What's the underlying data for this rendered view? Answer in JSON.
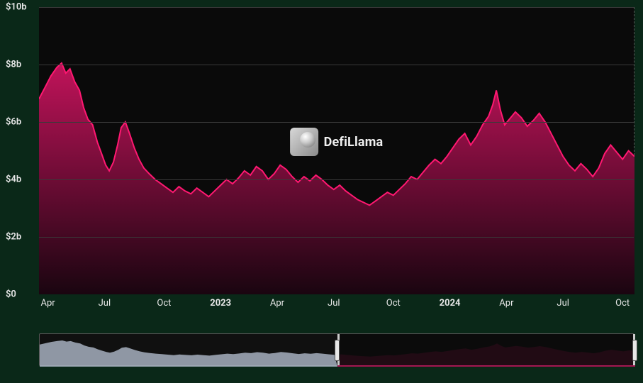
{
  "chart": {
    "type": "area",
    "background_color": "#0a0a0a",
    "page_background": "#0a2818",
    "grid_color": "#3a3a3a",
    "line_color": "#ff1871",
    "fill_top": "#c1135a",
    "fill_bottom": "#1a0510",
    "line_width": 2,
    "y_axis": {
      "min": 0,
      "max": 10,
      "unit": "b",
      "prefix": "$",
      "ticks": [
        0,
        2,
        4,
        6,
        8,
        10
      ],
      "labels": [
        "$0",
        "$2b",
        "$4b",
        "$6b",
        "$8b",
        "$10b"
      ],
      "label_fontsize": 13,
      "label_color": "#e8e8e8"
    },
    "x_axis": {
      "ticks": [
        {
          "pos": 0.015,
          "label": "Apr",
          "bold": false
        },
        {
          "pos": 0.11,
          "label": "Jul",
          "bold": false
        },
        {
          "pos": 0.21,
          "label": "Oct",
          "bold": false
        },
        {
          "pos": 0.305,
          "label": "2023",
          "bold": true
        },
        {
          "pos": 0.4,
          "label": "Apr",
          "bold": false
        },
        {
          "pos": 0.495,
          "label": "Jul",
          "bold": false
        },
        {
          "pos": 0.595,
          "label": "Oct",
          "bold": false
        },
        {
          "pos": 0.69,
          "label": "2024",
          "bold": true
        },
        {
          "pos": 0.785,
          "label": "Apr",
          "bold": false
        },
        {
          "pos": 0.88,
          "label": "Jul",
          "bold": false
        },
        {
          "pos": 0.98,
          "label": "Oct",
          "bold": false
        }
      ],
      "label_fontsize": 13,
      "label_color": "#e8e8e8"
    },
    "series": [
      {
        "x": 0.0,
        "y": 6.8
      },
      {
        "x": 0.01,
        "y": 7.2
      },
      {
        "x": 0.02,
        "y": 7.6
      },
      {
        "x": 0.03,
        "y": 7.9
      },
      {
        "x": 0.038,
        "y": 8.05
      },
      {
        "x": 0.045,
        "y": 7.7
      },
      {
        "x": 0.052,
        "y": 7.85
      },
      {
        "x": 0.06,
        "y": 7.4
      },
      {
        "x": 0.068,
        "y": 7.1
      },
      {
        "x": 0.075,
        "y": 6.5
      },
      {
        "x": 0.082,
        "y": 6.1
      },
      {
        "x": 0.09,
        "y": 5.9
      },
      {
        "x": 0.098,
        "y": 5.3
      },
      {
        "x": 0.105,
        "y": 4.9
      },
      {
        "x": 0.112,
        "y": 4.5
      },
      {
        "x": 0.118,
        "y": 4.3
      },
      {
        "x": 0.125,
        "y": 4.6
      },
      {
        "x": 0.132,
        "y": 5.2
      },
      {
        "x": 0.138,
        "y": 5.8
      },
      {
        "x": 0.145,
        "y": 6.0
      },
      {
        "x": 0.152,
        "y": 5.6
      },
      {
        "x": 0.16,
        "y": 5.1
      },
      {
        "x": 0.168,
        "y": 4.7
      },
      {
        "x": 0.176,
        "y": 4.4
      },
      {
        "x": 0.185,
        "y": 4.2
      },
      {
        "x": 0.195,
        "y": 4.0
      },
      {
        "x": 0.205,
        "y": 3.85
      },
      {
        "x": 0.215,
        "y": 3.7
      },
      {
        "x": 0.225,
        "y": 3.55
      },
      {
        "x": 0.235,
        "y": 3.75
      },
      {
        "x": 0.245,
        "y": 3.6
      },
      {
        "x": 0.255,
        "y": 3.5
      },
      {
        "x": 0.265,
        "y": 3.7
      },
      {
        "x": 0.275,
        "y": 3.55
      },
      {
        "x": 0.285,
        "y": 3.4
      },
      {
        "x": 0.295,
        "y": 3.6
      },
      {
        "x": 0.305,
        "y": 3.8
      },
      {
        "x": 0.315,
        "y": 4.0
      },
      {
        "x": 0.325,
        "y": 3.85
      },
      {
        "x": 0.335,
        "y": 4.05
      },
      {
        "x": 0.345,
        "y": 4.3
      },
      {
        "x": 0.355,
        "y": 4.15
      },
      {
        "x": 0.365,
        "y": 4.45
      },
      {
        "x": 0.375,
        "y": 4.3
      },
      {
        "x": 0.385,
        "y": 4.0
      },
      {
        "x": 0.395,
        "y": 4.2
      },
      {
        "x": 0.405,
        "y": 4.5
      },
      {
        "x": 0.415,
        "y": 4.35
      },
      {
        "x": 0.425,
        "y": 4.1
      },
      {
        "x": 0.435,
        "y": 3.9
      },
      {
        "x": 0.445,
        "y": 4.1
      },
      {
        "x": 0.455,
        "y": 3.95
      },
      {
        "x": 0.465,
        "y": 4.15
      },
      {
        "x": 0.475,
        "y": 4.0
      },
      {
        "x": 0.485,
        "y": 3.8
      },
      {
        "x": 0.495,
        "y": 3.65
      },
      {
        "x": 0.505,
        "y": 3.8
      },
      {
        "x": 0.515,
        "y": 3.6
      },
      {
        "x": 0.525,
        "y": 3.45
      },
      {
        "x": 0.535,
        "y": 3.3
      },
      {
        "x": 0.545,
        "y": 3.2
      },
      {
        "x": 0.555,
        "y": 3.1
      },
      {
        "x": 0.565,
        "y": 3.25
      },
      {
        "x": 0.575,
        "y": 3.4
      },
      {
        "x": 0.585,
        "y": 3.55
      },
      {
        "x": 0.595,
        "y": 3.45
      },
      {
        "x": 0.605,
        "y": 3.65
      },
      {
        "x": 0.615,
        "y": 3.85
      },
      {
        "x": 0.625,
        "y": 4.1
      },
      {
        "x": 0.635,
        "y": 4.0
      },
      {
        "x": 0.645,
        "y": 4.25
      },
      {
        "x": 0.655,
        "y": 4.5
      },
      {
        "x": 0.665,
        "y": 4.7
      },
      {
        "x": 0.675,
        "y": 4.55
      },
      {
        "x": 0.685,
        "y": 4.8
      },
      {
        "x": 0.695,
        "y": 5.1
      },
      {
        "x": 0.705,
        "y": 5.4
      },
      {
        "x": 0.715,
        "y": 5.6
      },
      {
        "x": 0.725,
        "y": 5.2
      },
      {
        "x": 0.735,
        "y": 5.5
      },
      {
        "x": 0.745,
        "y": 5.9
      },
      {
        "x": 0.755,
        "y": 6.2
      },
      {
        "x": 0.762,
        "y": 6.6
      },
      {
        "x": 0.768,
        "y": 7.1
      },
      {
        "x": 0.775,
        "y": 6.4
      },
      {
        "x": 0.782,
        "y": 5.9
      },
      {
        "x": 0.79,
        "y": 6.1
      },
      {
        "x": 0.8,
        "y": 6.35
      },
      {
        "x": 0.81,
        "y": 6.15
      },
      {
        "x": 0.82,
        "y": 5.85
      },
      {
        "x": 0.83,
        "y": 6.05
      },
      {
        "x": 0.84,
        "y": 6.3
      },
      {
        "x": 0.85,
        "y": 6.0
      },
      {
        "x": 0.86,
        "y": 5.6
      },
      {
        "x": 0.87,
        "y": 5.2
      },
      {
        "x": 0.88,
        "y": 4.8
      },
      {
        "x": 0.89,
        "y": 4.5
      },
      {
        "x": 0.9,
        "y": 4.3
      },
      {
        "x": 0.91,
        "y": 4.55
      },
      {
        "x": 0.92,
        "y": 4.35
      },
      {
        "x": 0.93,
        "y": 4.1
      },
      {
        "x": 0.94,
        "y": 4.4
      },
      {
        "x": 0.95,
        "y": 4.9
      },
      {
        "x": 0.96,
        "y": 5.2
      },
      {
        "x": 0.97,
        "y": 4.95
      },
      {
        "x": 0.98,
        "y": 4.7
      },
      {
        "x": 0.99,
        "y": 5.0
      },
      {
        "x": 1.0,
        "y": 4.8
      }
    ],
    "watermark": {
      "text": "DefiLlama",
      "icon_name": "defillama-logo"
    }
  },
  "brush": {
    "background": "#101010",
    "border_color": "#555",
    "unselected_fill": "#b9c4d6",
    "selected_fill": "#b01254",
    "handle_color": "#e8e8e8",
    "selection_start": 0.5,
    "selection_end": 1.0
  }
}
